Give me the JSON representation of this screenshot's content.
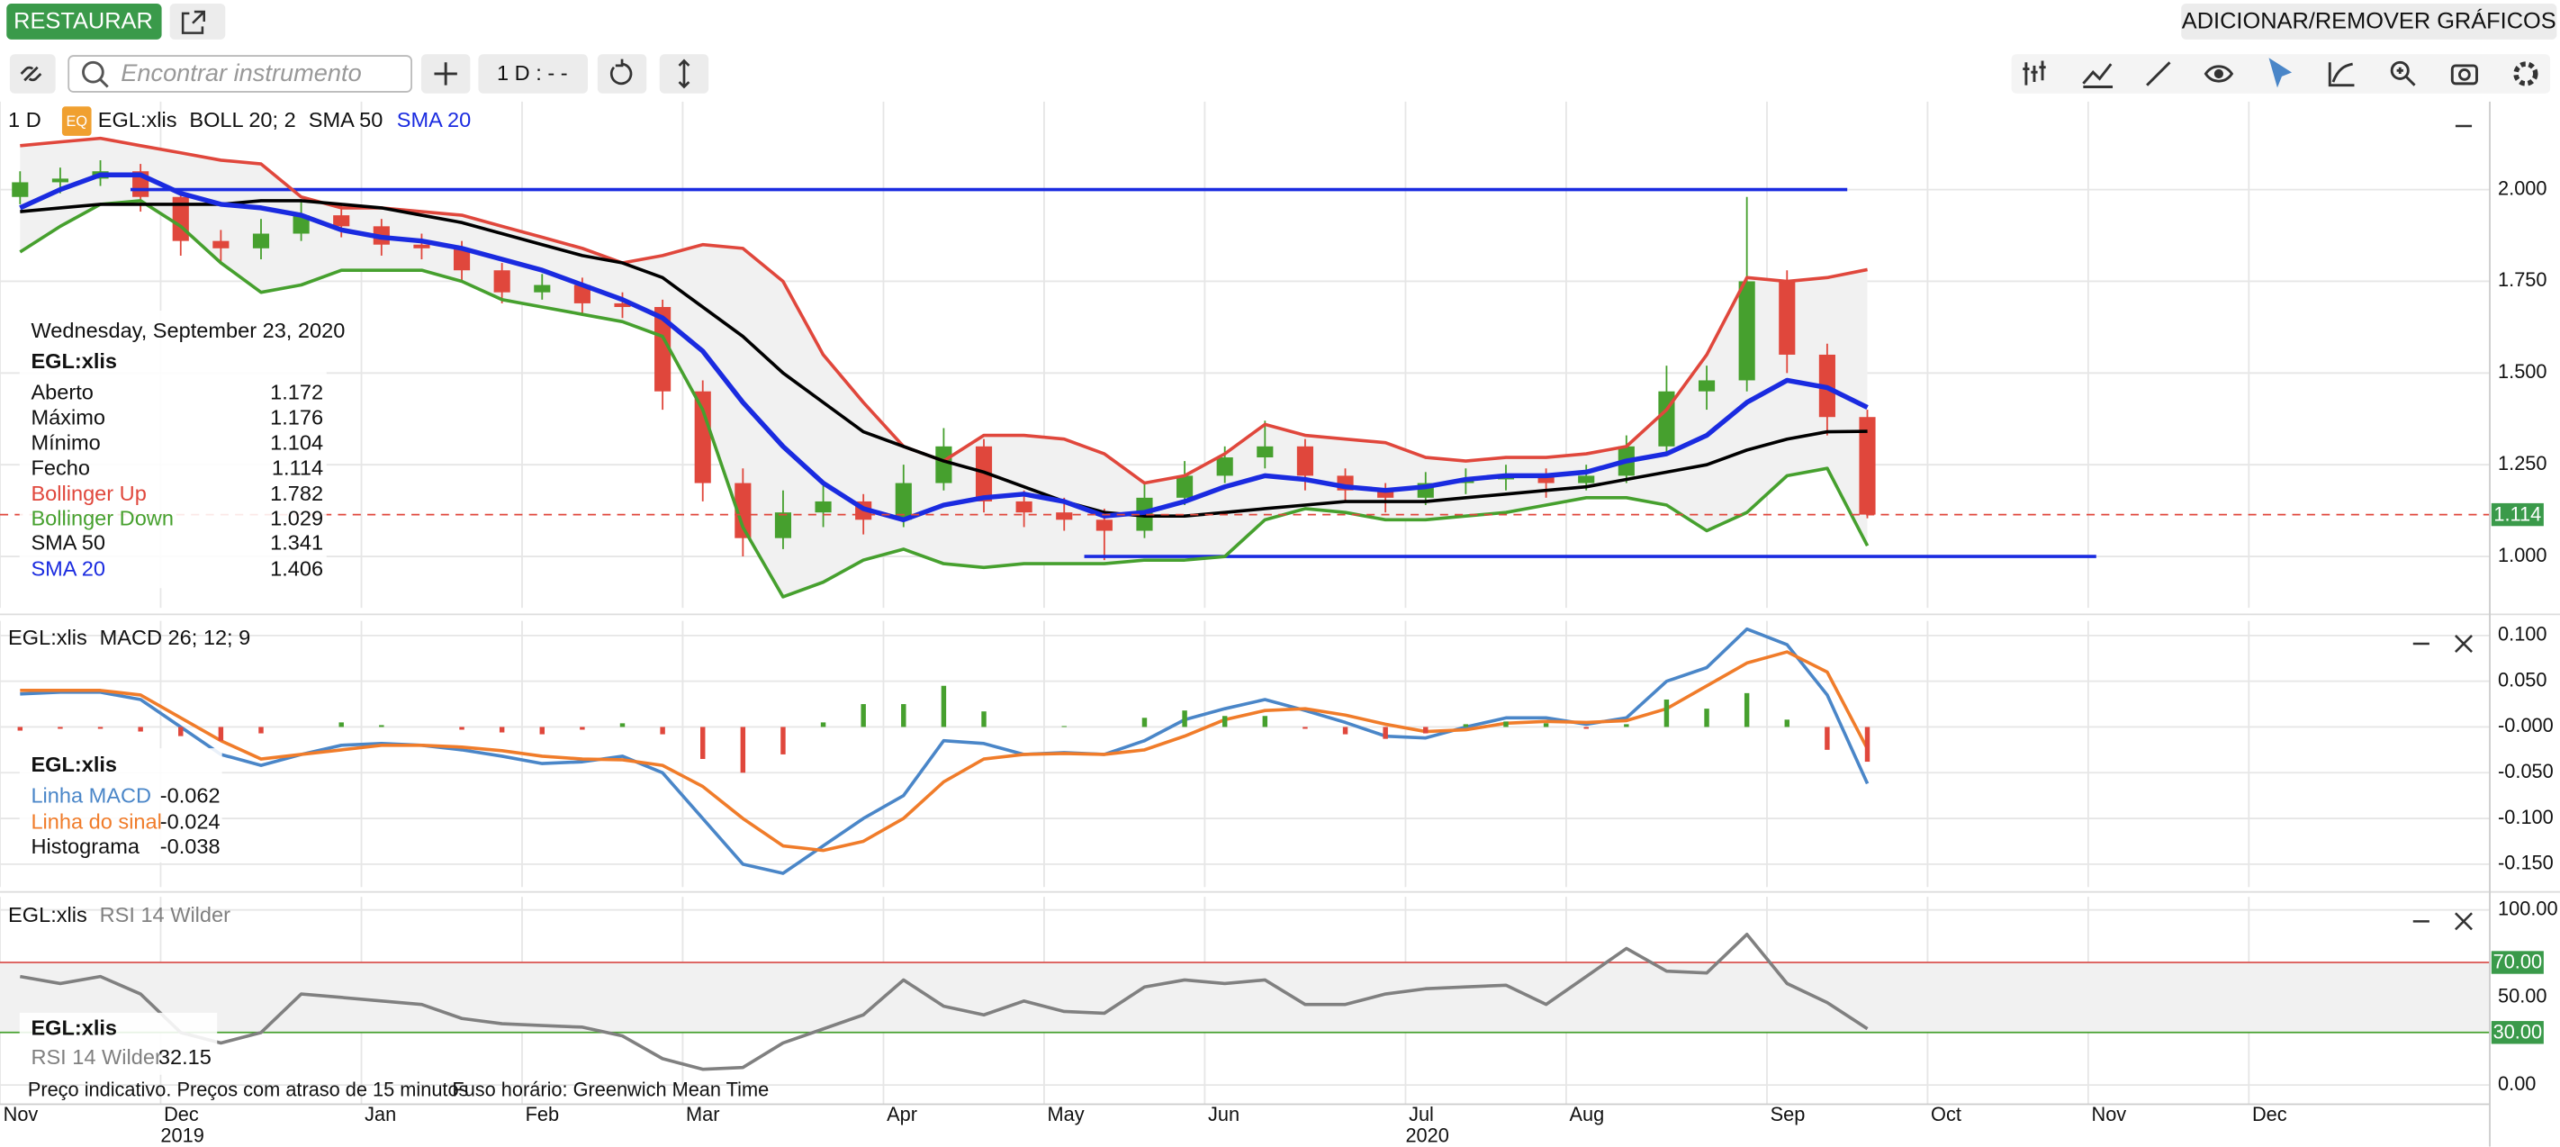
{
  "toolbar": {
    "restore": "RESTAURAR",
    "add_remove": "ADICIONAR/REMOVER GRÁFICOS",
    "search_placeholder": "Encontrar instrumento",
    "interval_button": "1 D : - -"
  },
  "footer": {
    "notice": "Preço indicativo. Preços com atraso de 15 minutos",
    "timezone": "Fuso horário: Greenwich Mean Time"
  },
  "tooltip": {
    "date": "Wednesday, September 23, 2020",
    "rows": [
      {
        "label": "Aberto",
        "value": 1.172
      },
      {
        "label": "Máximo",
        "value": 1.176
      },
      {
        "label": "Mínimo",
        "value": 1.104
      },
      {
        "label": "Fecho",
        "value": 1.114
      }
    ]
  },
  "chart_data": [
    {
      "type": "candlestick",
      "interval": "1 D",
      "badge": "EQ",
      "symbol": "EGL:xlis",
      "indicator": "BOLL 20; 2",
      "grid": true,
      "band_fill": "#f1f1f1",
      "up_color": "#46a02e",
      "down_color": "#e0473c",
      "categories": [
        "Nov",
        null,
        null,
        null,
        "Dec",
        null,
        null,
        null,
        null,
        "Jan",
        null,
        null,
        null,
        "Feb",
        null,
        null,
        null,
        "Mar",
        null,
        null,
        null,
        null,
        "Apr",
        null,
        null,
        null,
        "May",
        null,
        null,
        null,
        "Jun",
        null,
        null,
        null,
        null,
        "Jul",
        null,
        null,
        null,
        "Aug",
        null,
        null,
        null,
        null,
        "Sep",
        null,
        null,
        null,
        "Oct",
        null,
        null,
        null,
        "Nov",
        null,
        null,
        null,
        "Dec",
        null,
        null,
        null,
        null,
        null
      ],
      "years": [
        "2019",
        "2020"
      ],
      "ylim": [
        0.86,
        2.24
      ],
      "yticks": [
        {
          "value": 1,
          "label": "1.000"
        },
        {
          "value": 1.25,
          "label": "1.250"
        },
        {
          "value": 1.5,
          "label": "1.500"
        },
        {
          "value": 1.75,
          "label": "1.750"
        },
        {
          "value": 2,
          "label": "2.000"
        }
      ],
      "trend_lines": [
        {
          "value": 2,
          "color": "#1a2be0"
        },
        {
          "value": 1,
          "color": "#1a2be0"
        }
      ],
      "open": [
        1.98,
        2.02,
        2.03,
        2.05,
        1.98,
        1.86,
        1.84,
        1.88,
        1.93,
        1.9,
        1.85,
        1.84,
        1.78,
        1.72,
        1.74,
        1.69,
        1.68,
        1.45,
        1.2,
        1.05,
        1.12,
        1.15,
        1.1,
        1.2,
        1.3,
        1.15,
        1.12,
        1.1,
        1.07,
        1.16,
        1.22,
        1.27,
        1.3,
        1.22,
        1.18,
        1.16,
        1.2,
        1.21,
        1.22,
        1.2,
        1.22,
        1.3,
        1.45,
        1.48,
        1.75,
        1.55,
        1.38,
        null,
        null,
        null,
        null,
        null,
        null,
        null,
        null,
        null,
        null,
        null,
        null,
        null,
        null,
        null
      ],
      "high": [
        2.05,
        2.06,
        2.08,
        2.07,
        2.0,
        1.89,
        1.92,
        1.97,
        1.96,
        1.92,
        1.88,
        1.86,
        1.8,
        1.77,
        1.76,
        1.72,
        1.7,
        1.48,
        1.24,
        1.18,
        1.2,
        1.17,
        1.25,
        1.35,
        1.32,
        1.18,
        1.16,
        1.13,
        1.2,
        1.26,
        1.3,
        1.37,
        1.32,
        1.24,
        1.2,
        1.23,
        1.24,
        1.25,
        1.24,
        1.25,
        1.33,
        1.52,
        1.52,
        1.98,
        1.78,
        1.58,
        1.4,
        null,
        null,
        null,
        null,
        null,
        null,
        null,
        null,
        null,
        null,
        null,
        null,
        null,
        null,
        null
      ],
      "low": [
        1.96,
        1.99,
        2.01,
        1.94,
        1.82,
        1.8,
        1.81,
        1.86,
        1.87,
        1.82,
        1.81,
        1.75,
        1.69,
        1.7,
        1.66,
        1.65,
        1.4,
        1.15,
        1.0,
        1.02,
        1.08,
        1.06,
        1.08,
        1.18,
        1.12,
        1.08,
        1.07,
        0.99,
        1.05,
        1.14,
        1.2,
        1.24,
        1.18,
        1.15,
        1.12,
        1.14,
        1.17,
        1.18,
        1.16,
        1.18,
        1.2,
        1.28,
        1.4,
        1.45,
        1.5,
        1.33,
        1.104,
        null,
        null,
        null,
        null,
        null,
        null,
        null,
        null,
        null,
        null,
        null,
        null,
        null,
        null,
        null
      ],
      "close": [
        2.02,
        2.03,
        2.05,
        1.98,
        1.86,
        1.84,
        1.88,
        1.93,
        1.9,
        1.85,
        1.84,
        1.78,
        1.72,
        1.74,
        1.69,
        1.68,
        1.45,
        1.2,
        1.05,
        1.12,
        1.15,
        1.1,
        1.2,
        1.3,
        1.15,
        1.12,
        1.1,
        1.07,
        1.16,
        1.22,
        1.27,
        1.3,
        1.22,
        1.18,
        1.16,
        1.2,
        1.21,
        1.22,
        1.2,
        1.22,
        1.3,
        1.45,
        1.48,
        1.75,
        1.55,
        1.38,
        1.114,
        null,
        null,
        null,
        null,
        null,
        null,
        null,
        null,
        null,
        null,
        null,
        null,
        null,
        null,
        null
      ],
      "series": [
        {
          "name": "Bollinger Up",
          "color": "#e0473c",
          "values": [
            2.12,
            2.13,
            2.14,
            2.12,
            2.1,
            2.08,
            2.07,
            1.98,
            1.95,
            1.95,
            1.94,
            1.93,
            1.9,
            1.87,
            1.84,
            1.8,
            1.82,
            1.85,
            1.84,
            1.75,
            1.55,
            1.42,
            1.3,
            1.26,
            1.33,
            1.33,
            1.32,
            1.28,
            1.2,
            1.22,
            1.28,
            1.36,
            1.33,
            1.32,
            1.31,
            1.27,
            1.26,
            1.27,
            1.27,
            1.28,
            1.3,
            1.4,
            1.55,
            1.76,
            1.75,
            1.76,
            1.782,
            null,
            null,
            null,
            null,
            null,
            null,
            null,
            null,
            null,
            null,
            null,
            null,
            null,
            null,
            null
          ]
        },
        {
          "name": "Bollinger Down",
          "color": "#46a02e",
          "values": [
            1.83,
            1.9,
            1.96,
            1.97,
            1.9,
            1.8,
            1.72,
            1.74,
            1.78,
            1.78,
            1.78,
            1.75,
            1.7,
            1.68,
            1.66,
            1.64,
            1.6,
            1.4,
            1.08,
            0.89,
            0.93,
            0.99,
            1.02,
            0.98,
            0.97,
            0.98,
            0.98,
            0.98,
            0.99,
            0.99,
            1.0,
            1.1,
            1.13,
            1.12,
            1.1,
            1.1,
            1.11,
            1.12,
            1.14,
            1.16,
            1.16,
            1.14,
            1.07,
            1.12,
            1.22,
            1.24,
            1.029,
            null,
            null,
            null,
            null,
            null,
            null,
            null,
            null,
            null,
            null,
            null,
            null,
            null,
            null,
            null
          ]
        },
        {
          "name": "SMA 50",
          "color": "#000000",
          "values": [
            1.94,
            1.95,
            1.96,
            1.96,
            1.96,
            1.96,
            1.97,
            1.97,
            1.96,
            1.95,
            1.93,
            1.91,
            1.88,
            1.85,
            1.82,
            1.8,
            1.76,
            1.68,
            1.6,
            1.5,
            1.42,
            1.34,
            1.3,
            1.26,
            1.23,
            1.19,
            1.15,
            1.12,
            1.11,
            1.11,
            1.12,
            1.13,
            1.14,
            1.15,
            1.15,
            1.15,
            1.16,
            1.17,
            1.18,
            1.19,
            1.21,
            1.23,
            1.25,
            1.29,
            1.32,
            1.34,
            1.341,
            null,
            null,
            null,
            null,
            null,
            null,
            null,
            null,
            null,
            null,
            null,
            null,
            null,
            null,
            null
          ]
        },
        {
          "name": "SMA 20",
          "color": "#1a2be0",
          "values": [
            1.95,
            2.0,
            2.04,
            2.04,
            1.99,
            1.96,
            1.95,
            1.93,
            1.89,
            1.87,
            1.86,
            1.84,
            1.81,
            1.78,
            1.74,
            1.7,
            1.65,
            1.56,
            1.42,
            1.3,
            1.2,
            1.13,
            1.1,
            1.14,
            1.16,
            1.17,
            1.15,
            1.11,
            1.12,
            1.15,
            1.19,
            1.22,
            1.21,
            1.19,
            1.18,
            1.19,
            1.21,
            1.22,
            1.22,
            1.23,
            1.26,
            1.28,
            1.33,
            1.42,
            1.48,
            1.46,
            1.406,
            null,
            null,
            null,
            null,
            null,
            null,
            null,
            null,
            null,
            null,
            null,
            null,
            null,
            null,
            null
          ]
        }
      ]
    },
    {
      "type": "line",
      "title": "MACD 26; 12; 9",
      "grid": true,
      "ylim": [
        -0.175,
        0.116
      ],
      "yticks": [
        {
          "value": 0.1,
          "label": "0.100"
        },
        {
          "value": 0.05,
          "label": "0.050"
        },
        {
          "value": 0,
          "label": "-0.000"
        },
        {
          "value": -0.05,
          "label": "-0.050"
        },
        {
          "value": -0.1,
          "label": "-0.100"
        },
        {
          "value": -0.15,
          "label": "-0.150"
        }
      ],
      "series": [
        {
          "name": "Linha MACD",
          "color": "#4a86c8",
          "values": [
            0.036,
            0.038,
            0.038,
            0.03,
            0.0,
            -0.03,
            -0.042,
            -0.03,
            -0.02,
            -0.018,
            -0.02,
            -0.025,
            -0.032,
            -0.04,
            -0.038,
            -0.032,
            -0.05,
            -0.1,
            -0.15,
            -0.16,
            -0.13,
            -0.1,
            -0.075,
            -0.015,
            -0.018,
            -0.03,
            -0.028,
            -0.03,
            -0.015,
            0.008,
            0.02,
            0.03,
            0.018,
            0.005,
            -0.01,
            -0.012,
            0.0,
            0.01,
            0.01,
            0.003,
            0.01,
            0.05,
            0.065,
            0.107,
            0.09,
            0.035,
            -0.062,
            null,
            null,
            null,
            null,
            null,
            null,
            null,
            null,
            null,
            null,
            null,
            null,
            null,
            null,
            null
          ]
        },
        {
          "name": "Linha do sinal",
          "color": "#f07c2a",
          "values": [
            0.04,
            0.04,
            0.04,
            0.035,
            0.01,
            -0.015,
            -0.035,
            -0.03,
            -0.025,
            -0.02,
            -0.02,
            -0.022,
            -0.026,
            -0.032,
            -0.035,
            -0.036,
            -0.042,
            -0.065,
            -0.1,
            -0.13,
            -0.135,
            -0.125,
            -0.1,
            -0.06,
            -0.035,
            -0.03,
            -0.029,
            -0.03,
            -0.025,
            -0.01,
            0.008,
            0.018,
            0.02,
            0.013,
            0.003,
            -0.005,
            -0.003,
            0.004,
            0.006,
            0.005,
            0.007,
            0.02,
            0.045,
            0.07,
            0.082,
            0.06,
            -0.024,
            null,
            null,
            null,
            null,
            null,
            null,
            null,
            null,
            null,
            null,
            null,
            null,
            null,
            null,
            null
          ]
        },
        {
          "name": "Histograma",
          "type": "bar",
          "color": "#46a02e",
          "negative_color": "#e0473c",
          "values": [
            -0.004,
            -0.002,
            -0.002,
            -0.005,
            -0.01,
            -0.015,
            -0.007,
            0.0,
            0.005,
            0.002,
            0.0,
            -0.003,
            -0.006,
            -0.008,
            -0.003,
            0.004,
            -0.008,
            -0.035,
            -0.05,
            -0.03,
            0.005,
            0.025,
            0.025,
            0.045,
            0.017,
            0.0,
            0.001,
            0.0,
            0.01,
            0.018,
            0.012,
            0.012,
            -0.002,
            -0.008,
            -0.013,
            -0.007,
            0.003,
            0.006,
            0.004,
            -0.002,
            0.003,
            0.03,
            0.02,
            0.037,
            0.008,
            -0.025,
            -0.038,
            null,
            null,
            null,
            null,
            null,
            null,
            null,
            null,
            null,
            null,
            null,
            null,
            null,
            null,
            null
          ]
        }
      ]
    },
    {
      "type": "line",
      "grid": true,
      "ylim": [
        -11,
        107.5
      ],
      "band_fill": "#f1f1f1",
      "yticks": [
        {
          "value": 100,
          "label": "100.00"
        },
        {
          "value": 50,
          "label": "50.00"
        },
        {
          "value": 0,
          "label": "0.00"
        }
      ],
      "levels": [
        {
          "value": 70,
          "label": "70.00",
          "color": "#d9534f"
        },
        {
          "value": 30,
          "label": "30.00",
          "color": "#46a02e"
        }
      ],
      "series": [
        {
          "name": "RSI 14 Wilder",
          "color": "#808080",
          "values": [
            62,
            58,
            62,
            52,
            30,
            24,
            30,
            52,
            50,
            48,
            46,
            38,
            35,
            34,
            33,
            28,
            15,
            9,
            10,
            24,
            32,
            40,
            60,
            45,
            40,
            48,
            42,
            41,
            56,
            60,
            58,
            60,
            46,
            46,
            52,
            55,
            56,
            57,
            46,
            62,
            78,
            65,
            64,
            86,
            58,
            47,
            32.15,
            null,
            null,
            null,
            null,
            null,
            null,
            null,
            null,
            null,
            null,
            null,
            null,
            null,
            null,
            null
          ]
        }
      ]
    }
  ]
}
